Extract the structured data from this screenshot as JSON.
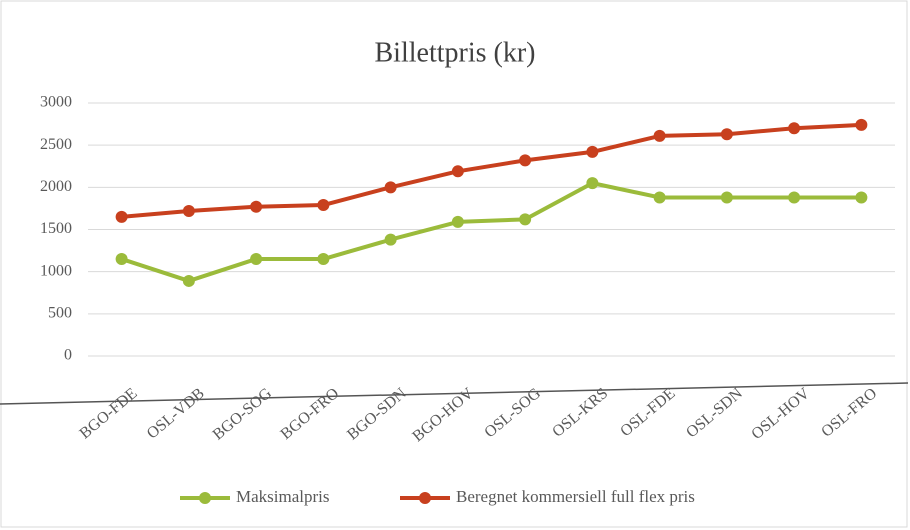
{
  "chart_data": {
    "type": "line",
    "title": "Billettpris (kr)",
    "categories": [
      "BGO-FDE",
      "OSL-VDB",
      "BGO-SOG",
      "BGO-FRO",
      "BGO-SDN",
      "BGO-HOV",
      "OSL-SOG",
      "OSL-KRS",
      "OSL-FDE",
      "OSL-SDN",
      "OSL-HOV",
      "OSL-FRO"
    ],
    "series": [
      {
        "name": "Maksimalpris",
        "color": "#9bbb3b",
        "values": [
          1150,
          890,
          1150,
          1150,
          1380,
          1590,
          1620,
          2050,
          1880,
          1880,
          1880,
          1880
        ]
      },
      {
        "name": "Beregnet kommersiell full flex pris",
        "color": "#c8401e",
        "values": [
          1650,
          1720,
          1770,
          1790,
          2000,
          2190,
          2320,
          2420,
          2610,
          2630,
          2700,
          2740
        ]
      }
    ],
    "ylim": [
      0,
      3000
    ],
    "yticks": [
      0,
      500,
      1000,
      1500,
      2000,
      2500,
      3000
    ],
    "grid": true,
    "legend": "bottom"
  }
}
